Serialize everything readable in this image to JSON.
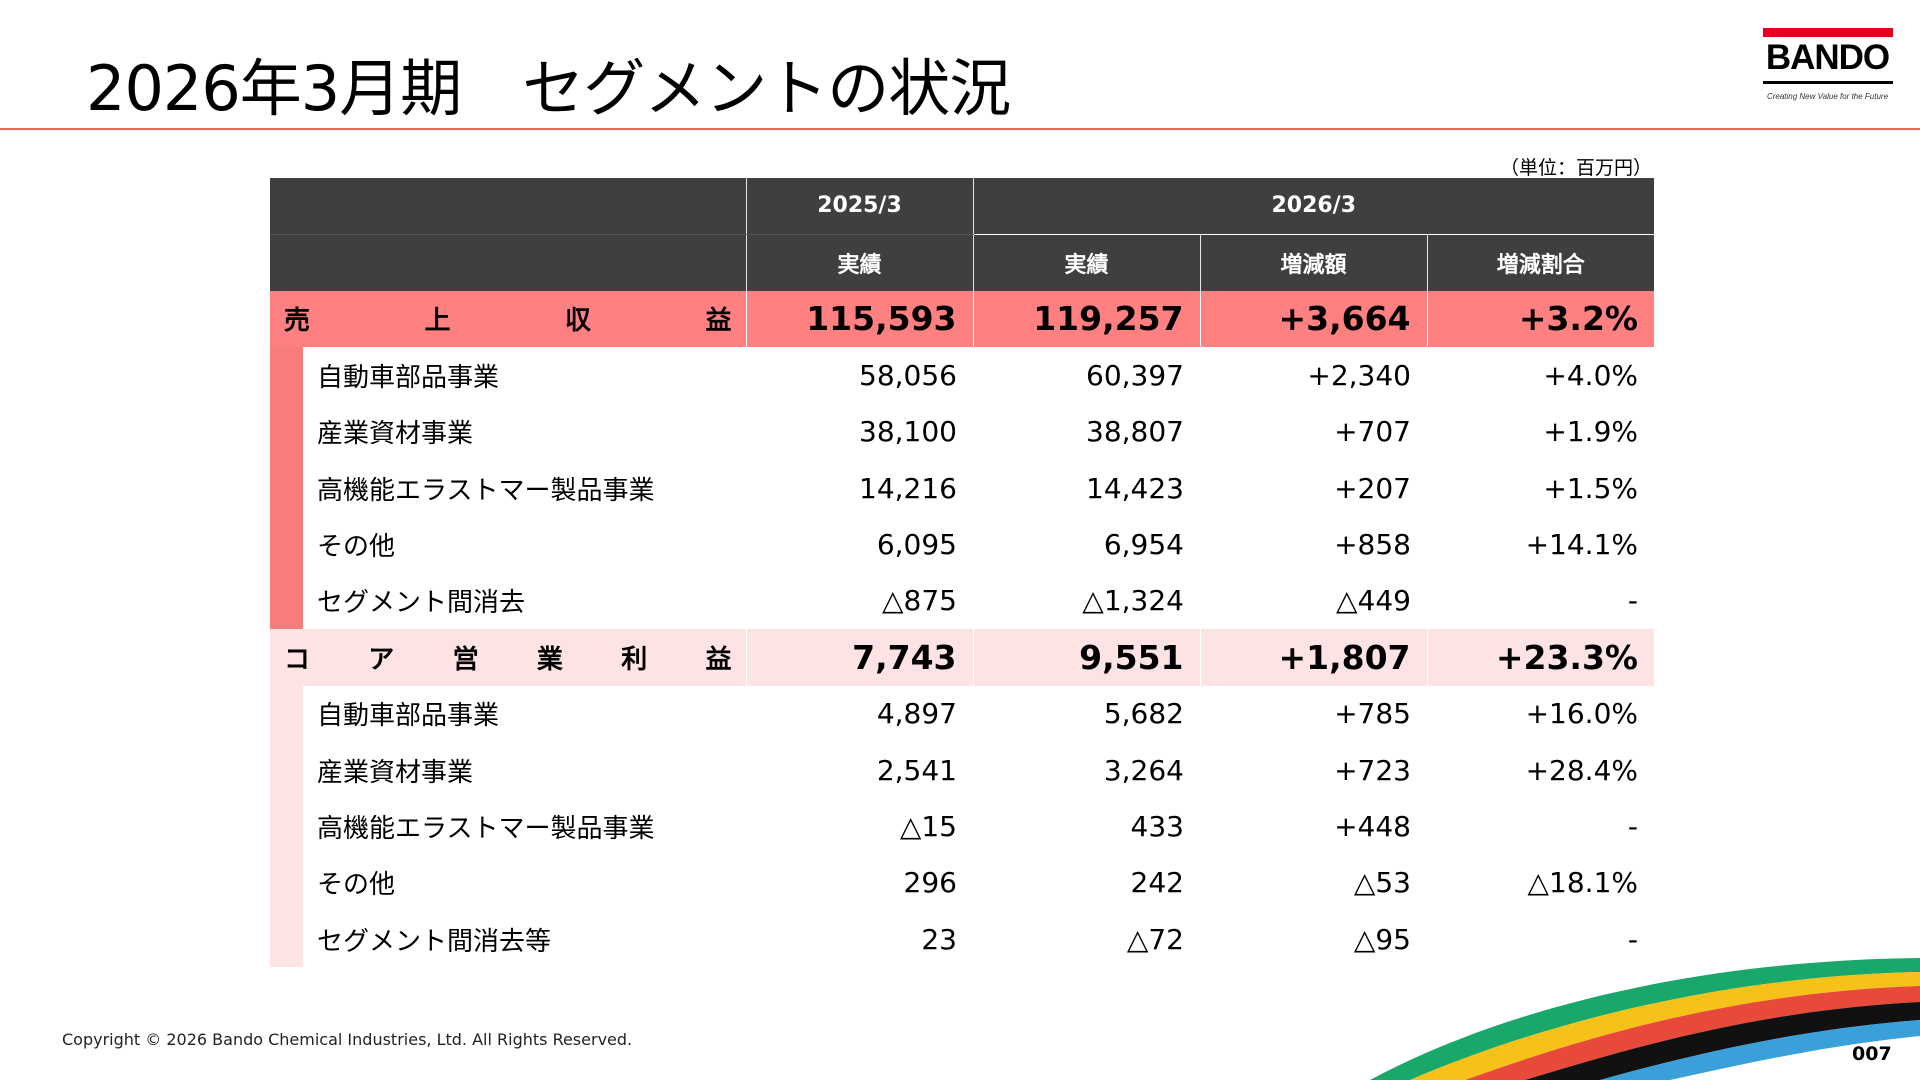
{
  "title": "2026年3月期　セグメントの状況",
  "logo": {
    "name": "BANDO",
    "tagline": "Creating New Value for the Future"
  },
  "unit_note": "（単位：百万円）",
  "header": {
    "period_prev": "2025/3",
    "period_curr": "2026/3",
    "col_prev_actual": "実績",
    "col_curr_actual": "実績",
    "col_change": "増減額",
    "col_change_rate": "増減割合"
  },
  "revenue": {
    "label_chars": [
      "売",
      "上",
      "収",
      "益"
    ],
    "prev": "115,593",
    "curr": "119,257",
    "change": "+3,664",
    "rate": "+3.2%",
    "rows": [
      {
        "name": "自動車部品事業",
        "prev": "58,056",
        "curr": "60,397",
        "change": "+2,340",
        "rate": "+4.0%"
      },
      {
        "name": "産業資材事業",
        "prev": "38,100",
        "curr": "38,807",
        "change": "+707",
        "rate": "+1.9%"
      },
      {
        "name": "高機能エラストマー製品事業",
        "prev": "14,216",
        "curr": "14,423",
        "change": "+207",
        "rate": "+1.5%"
      },
      {
        "name": "その他",
        "prev": "6,095",
        "curr": "6,954",
        "change": "+858",
        "rate": "+14.1%"
      },
      {
        "name": "セグメント間消去",
        "prev": "△875",
        "curr": "△1,324",
        "change": "△449",
        "rate": "-"
      }
    ]
  },
  "core_profit": {
    "label_chars": [
      "コ",
      "ア",
      "営",
      "業",
      "利",
      "益"
    ],
    "prev": "7,743",
    "curr": "9,551",
    "change": "+1,807",
    "rate": "+23.3%",
    "rows": [
      {
        "name": "自動車部品事業",
        "prev": "4,897",
        "curr": "5,682",
        "change": "+785",
        "rate": "+16.0%"
      },
      {
        "name": "産業資材事業",
        "prev": "2,541",
        "curr": "3,264",
        "change": "+723",
        "rate": "+28.4%"
      },
      {
        "name": "高機能エラストマー製品事業",
        "prev": "△15",
        "curr": "433",
        "change": "+448",
        "rate": "-"
      },
      {
        "name": "その他",
        "prev": "296",
        "curr": "242",
        "change": "△53",
        "rate": "△18.1%"
      },
      {
        "name": "セグメント間消去等",
        "prev": "23",
        "curr": "△72",
        "change": "△95",
        "rate": "-"
      }
    ]
  },
  "footer": {
    "copyright": "Copyright © 2026 Bando Chemical Industries, Ltd. All Rights Reserved.",
    "page": "007"
  },
  "colors": {
    "revenue_band": "#ff8080",
    "profit_band": "#fde3e3",
    "header_bg": "#3f3f3f",
    "brand_red": "#e6001f"
  }
}
